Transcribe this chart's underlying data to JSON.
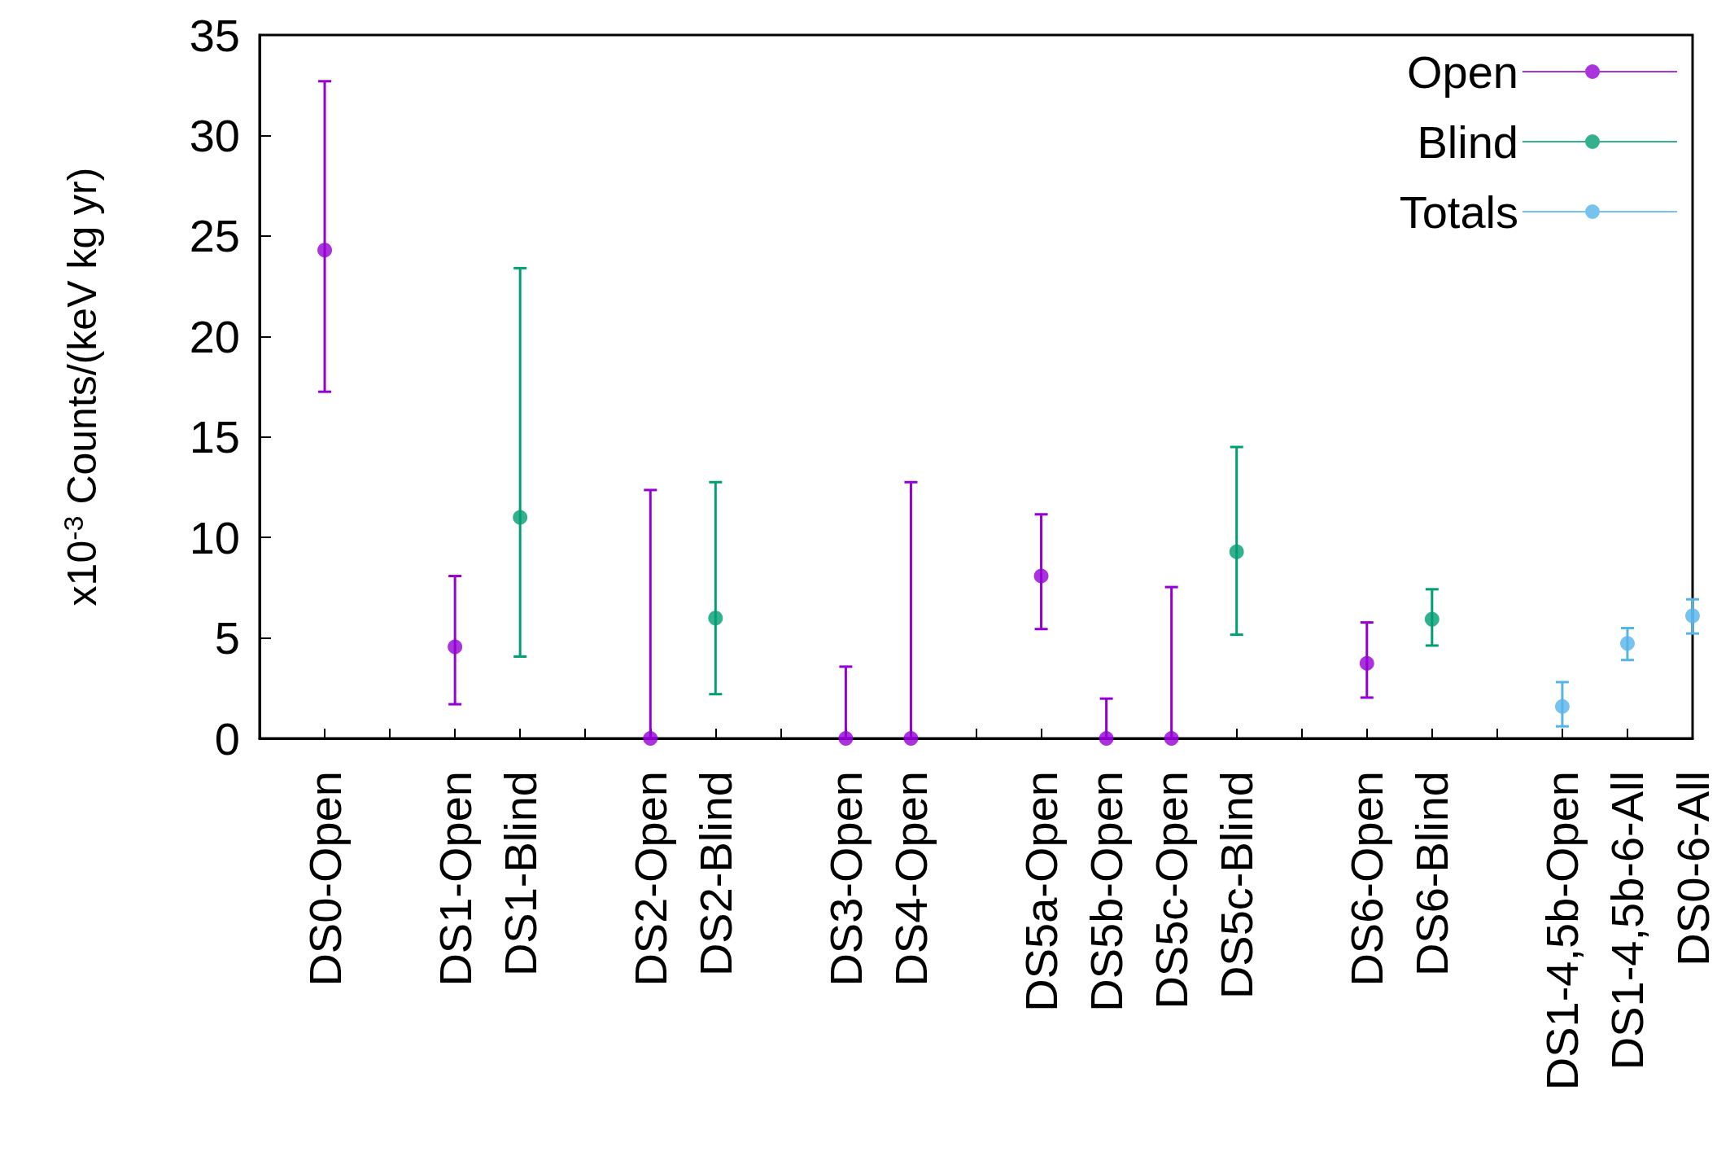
{
  "chart_data": {
    "type": "scatter",
    "ylabel": "x10$^{-3}$ Counts/(keV kg yr)",
    "categories": [
      null,
      "DS0-Open",
      null,
      "DS1-Open",
      "DS1-Blind",
      null,
      "DS2-Open",
      "DS2-Blind",
      null,
      "DS3-Open",
      "DS4-Open",
      null,
      "DS5a-Open",
      "DS5b-Open",
      "DS5c-Open",
      "DS5c-Blind",
      null,
      "DS6-Open",
      "DS6-Blind",
      null,
      "DS1-4,5b-Open",
      "DS1-4,5b-6-All",
      "DS0-6-All"
    ],
    "series": [
      {
        "name": "Open",
        "color": "#9400d3",
        "values": [
          null,
          24.3,
          null,
          4.56,
          null,
          null,
          0,
          null,
          null,
          0,
          0,
          null,
          8.08,
          0,
          0,
          null,
          null,
          3.74,
          null,
          null,
          null,
          null,
          null
        ],
        "errors": [
          null,
          [
            17.25,
            32.7
          ],
          null,
          [
            1.7,
            8.08
          ],
          null,
          null,
          [
            0,
            12.36
          ],
          null,
          null,
          [
            0,
            3.57
          ],
          [
            0,
            12.75
          ],
          null,
          [
            5.44,
            11.15
          ],
          [
            0,
            1.98
          ],
          [
            0,
            7.53
          ],
          null,
          null,
          [
            2.03,
            5.77
          ],
          null,
          null,
          null,
          null,
          null
        ]
      },
      {
        "name": "Blind",
        "color": "#009e73",
        "values": [
          null,
          null,
          null,
          null,
          11.0,
          null,
          null,
          5.99,
          null,
          null,
          null,
          null,
          null,
          null,
          null,
          9.29,
          null,
          null,
          5.93,
          null,
          null,
          null,
          null
        ],
        "errors": [
          null,
          null,
          null,
          null,
          [
            4.07,
            23.4
          ],
          null,
          null,
          [
            2.2,
            12.75
          ],
          null,
          null,
          null,
          null,
          null,
          null,
          null,
          [
            5.16,
            14.5
          ],
          null,
          null,
          [
            4.62,
            7.42
          ],
          null,
          null,
          null,
          null
        ]
      },
      {
        "name": "Totals",
        "color": "#56b4e9",
        "values": [
          null,
          null,
          null,
          null,
          null,
          null,
          null,
          null,
          null,
          null,
          null,
          null,
          null,
          null,
          null,
          null,
          null,
          null,
          null,
          null,
          1.59,
          4.73,
          6.1
        ],
        "errors": [
          null,
          null,
          null,
          null,
          null,
          null,
          null,
          null,
          null,
          null,
          null,
          null,
          null,
          null,
          null,
          null,
          null,
          null,
          null,
          null,
          [
            0.6,
            2.8
          ],
          [
            3.9,
            5.49
          ],
          [
            5.22,
            6.92
          ]
        ]
      }
    ],
    "ylim": [
      0,
      35
    ],
    "yticks": [
      0,
      5,
      10,
      15,
      20,
      25,
      30,
      35
    ],
    "grid": false,
    "legend": "top right",
    "marker": "circle"
  }
}
